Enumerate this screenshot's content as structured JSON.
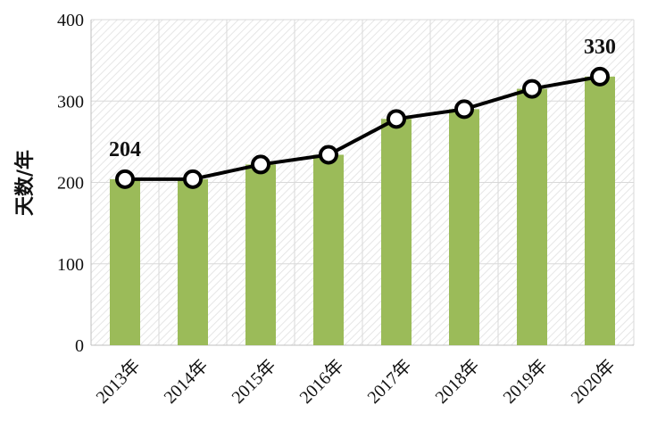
{
  "chart_data": {
    "type": "bar",
    "categories": [
      "2013年",
      "2014年",
      "2015年",
      "2016年",
      "2017年",
      "2018年",
      "2019年",
      "2020年"
    ],
    "series": [
      {
        "type": "bar",
        "values": [
          204,
          204,
          222,
          234,
          278,
          290,
          315,
          330
        ]
      },
      {
        "type": "line",
        "values": [
          204,
          204,
          222,
          234,
          278,
          290,
          315,
          330
        ]
      }
    ],
    "ylabel": "天数/年",
    "xlabel": "",
    "ylim": [
      0,
      400
    ],
    "yticks": [
      0,
      100,
      200,
      300,
      400
    ],
    "yticklabels": [
      "0",
      "100",
      "200",
      "300",
      "400"
    ],
    "data_labels": [
      {
        "index": 0,
        "text": "204"
      },
      {
        "index": 7,
        "text": "330"
      }
    ],
    "grid": true,
    "colors": {
      "bar": "#9BBB59",
      "line": "#000000",
      "marker_fill": "#ffffff",
      "grid": "#d9d9d9",
      "plot_hatch": "#e3e3e3"
    }
  }
}
